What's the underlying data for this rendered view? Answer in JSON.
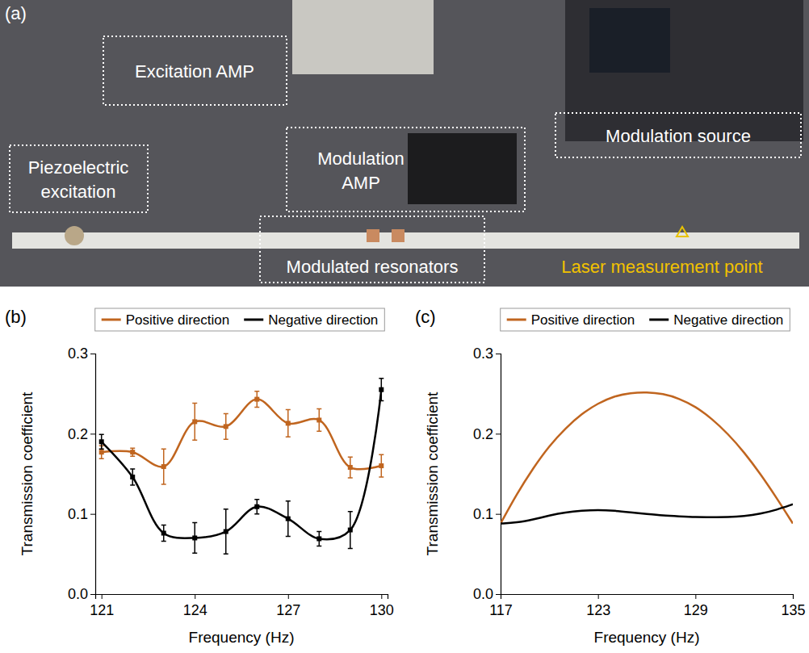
{
  "panel_a": {
    "letter": "(a)",
    "labels": [
      "Excitation AMP",
      "Modulation source",
      "Piezoelectric excitation",
      "Modulation AMP",
      "Modulated resonators",
      "Laser measurement point"
    ]
  },
  "chart_data": [
    {
      "type": "line",
      "panel": "(b)",
      "x_label": "Frequency (Hz)",
      "y_label": "Transmission coefficient",
      "x": [
        121,
        122,
        123,
        124,
        125,
        126,
        127,
        128,
        129,
        130
      ],
      "xlim": [
        120.8,
        130.2
      ],
      "xticks": [
        121,
        124,
        127,
        130
      ],
      "ylim": [
        0,
        0.3
      ],
      "yticks": [
        {
          "value": 0,
          "label": "0.0"
        },
        0.1,
        0.2,
        0.3
      ],
      "legend": "top",
      "series": [
        {
          "name": "Positive direction",
          "color": "#c0651f",
          "marker": "square",
          "values": [
            0.177,
            0.177,
            0.159,
            0.215,
            0.209,
            0.243,
            0.213,
            0.217,
            0.158,
            0.16
          ],
          "errors": [
            0.008,
            0.005,
            0.022,
            0.023,
            0.016,
            0.01,
            0.017,
            0.014,
            0.013,
            0.014
          ]
        },
        {
          "name": "Negative direction",
          "color": "#000000",
          "marker": "square",
          "values": [
            0.19,
            0.146,
            0.076,
            0.07,
            0.078,
            0.109,
            0.094,
            0.069,
            0.08,
            0.255
          ],
          "errors": [
            0.009,
            0.01,
            0.01,
            0.019,
            0.028,
            0.009,
            0.022,
            0.009,
            0.023,
            0.014
          ]
        }
      ]
    },
    {
      "type": "line",
      "panel": "(c)",
      "x_label": "Frequency (Hz)",
      "y_label": "Transmission coefficient",
      "x": [
        117,
        118,
        119,
        120,
        121,
        122,
        123,
        124,
        125,
        126,
        127,
        128,
        129,
        130,
        131,
        132,
        133,
        134,
        135
      ],
      "xlim": [
        117,
        135
      ],
      "xticks": [
        117,
        123,
        129,
        135
      ],
      "ylim": [
        0,
        0.3
      ],
      "yticks": [
        {
          "value": 0,
          "label": "0.0"
        },
        0.1,
        0.2,
        0.3
      ],
      "legend": "top",
      "series": [
        {
          "name": "Positive direction",
          "color": "#c0651f",
          "values": [
            0.088,
            0.125,
            0.157,
            0.185,
            0.207,
            0.225,
            0.238,
            0.247,
            0.251,
            0.252,
            0.25,
            0.244,
            0.234,
            0.219,
            0.2,
            0.177,
            0.15,
            0.12,
            0.088
          ]
        },
        {
          "name": "Negative direction",
          "color": "#000000",
          "values": [
            0.088,
            0.089,
            0.093,
            0.098,
            0.102,
            0.104,
            0.105,
            0.104,
            0.102,
            0.1,
            0.098,
            0.097,
            0.096,
            0.096,
            0.096,
            0.097,
            0.1,
            0.105,
            0.112
          ]
        }
      ]
    }
  ]
}
